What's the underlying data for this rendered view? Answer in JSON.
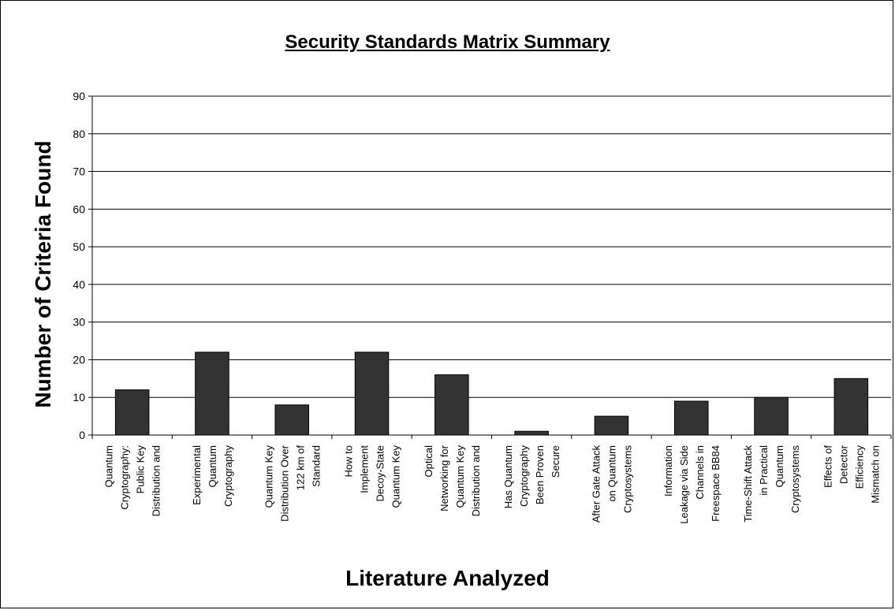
{
  "chart_data": {
    "type": "bar",
    "title": "Security Standards Matrix Summary",
    "xlabel": "Literature Analyzed",
    "ylabel": "Number of Criteria Found",
    "ylim": [
      0,
      90
    ],
    "yticks": [
      0,
      10,
      20,
      30,
      40,
      50,
      60,
      70,
      80,
      90
    ],
    "grid": true,
    "bar_color": "#333333",
    "categories": [
      [
        "Quantum",
        "Cryptography:",
        "Public Key",
        "Distribution and"
      ],
      [
        "Experimental",
        "Quantum",
        "Cryptography"
      ],
      [
        "Quantum Key",
        "Distribution Over",
        "122 km of",
        "Standard"
      ],
      [
        "How to",
        "Implement",
        "Decoy-State",
        "Quantum Key"
      ],
      [
        "Optical",
        "Networking for",
        "Quantum Key",
        "Distribution and"
      ],
      [
        "Has Quantum",
        "Cryptography",
        "Been Proven",
        "Secure"
      ],
      [
        "After Gate Attack",
        "on Quantum",
        "Cryptosystems"
      ],
      [
        "Information",
        "Leakage via Side",
        "Channels in",
        "Freespace BB84"
      ],
      [
        "Time-Shift Attack",
        "in Practical",
        "Quantum",
        "Cryptosystems"
      ],
      [
        "Effects of",
        "Detector",
        "Efficiency",
        "Mismatch on"
      ]
    ],
    "values": [
      12,
      22,
      8,
      22,
      16,
      1,
      5,
      9,
      10,
      15
    ]
  }
}
